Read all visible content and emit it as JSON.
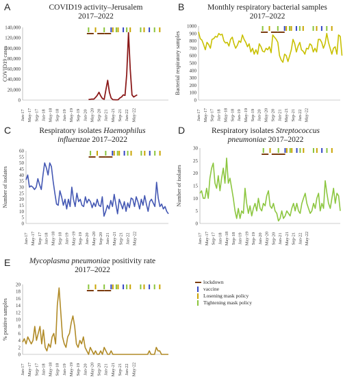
{
  "months": [
    "Jan-17",
    "May-17",
    "Sep-17",
    "Jan-18",
    "May-18",
    "Sep-18",
    "Jan-19",
    "May-19",
    "Sep-19",
    "Jan-20",
    "May-20",
    "Sep-20",
    "Jan-21",
    "May-21",
    "Sep-21",
    "Jan-22",
    "May-22"
  ],
  "colors": {
    "lockdown": "#7a3b0e",
    "vaccine": "#3346c4",
    "losening": "#c9a400",
    "tightening": "#8ac43a",
    "A": "#8b1a1a",
    "B": "#c8c000",
    "C": "#4357b3",
    "D": "#8cc63f",
    "E": "#b08a26"
  },
  "legend": {
    "lockdown": "lockdown",
    "vaccine": "vaccine",
    "losening": "Losening mask policy",
    "tightening": "Tightening mask policy"
  },
  "chart_data": [
    {
      "id": "A",
      "letter": "A",
      "type": "line",
      "title_line1": "COVID19 activity–Jerusalem",
      "title_line2": "2017–2022",
      "ylabel": "COVID19 cases",
      "ylim": [
        0,
        140000
      ],
      "yticks": [
        "0",
        "20,000",
        "40,000",
        "60,000",
        "80,000",
        "100,000",
        "120,000",
        "140,000"
      ],
      "start_index": 38,
      "values": [
        1200,
        1500,
        2000,
        1800,
        5000,
        9000,
        15000,
        8000,
        3000,
        1500,
        20000,
        38000,
        15000,
        4000,
        800,
        600,
        500,
        700,
        4000,
        6000,
        10000,
        9000,
        50000,
        130000,
        60000,
        10000,
        6000,
        8000,
        10000
      ]
    },
    {
      "id": "B",
      "letter": "B",
      "type": "line",
      "title_line1": "Monthly respiratory bacterial samples",
      "title_line2": "2017–2022",
      "ylabel": "Bacterial respiratory samples",
      "ylim": [
        0,
        1000
      ],
      "yticks": [
        "0",
        "100",
        "200",
        "300",
        "400",
        "500",
        "600",
        "700",
        "800",
        "900",
        "1000"
      ],
      "values": [
        920,
        830,
        810,
        750,
        680,
        780,
        750,
        700,
        820,
        830,
        860,
        850,
        900,
        880,
        890,
        800,
        770,
        780,
        730,
        820,
        850,
        760,
        700,
        740,
        800,
        780,
        880,
        820,
        780,
        720,
        760,
        650,
        700,
        620,
        680,
        620,
        760,
        720,
        660,
        650,
        700,
        680,
        720,
        640,
        880,
        850,
        820,
        780,
        600,
        540,
        510,
        620,
        600,
        520,
        600,
        680,
        820,
        760,
        650,
        730,
        780,
        680,
        660,
        620,
        700,
        690,
        760,
        740,
        650,
        700,
        650,
        820,
        820,
        780,
        700,
        760,
        900,
        780,
        700,
        620,
        700,
        720,
        620,
        880,
        860,
        600
      ]
    },
    {
      "id": "C",
      "letter": "C",
      "type": "line",
      "title_line1": "Respiratory isolates ",
      "title_italic1": "Haemophilus",
      "title_italic2": "influenzae",
      "title_line2_rest": " 2017–2022",
      "ylabel": "Number of isolates",
      "ylim": [
        0,
        60
      ],
      "yticks": [
        "0",
        "5",
        "10",
        "15",
        "20",
        "25",
        "30",
        "35",
        "40",
        "45",
        "50",
        "55",
        "60"
      ],
      "values": [
        36,
        40,
        30,
        31,
        30,
        28,
        30,
        37,
        32,
        28,
        40,
        50,
        46,
        40,
        50,
        47,
        35,
        25,
        16,
        15,
        27,
        22,
        15,
        20,
        12,
        20,
        14,
        30,
        20,
        14,
        25,
        18,
        20,
        15,
        14,
        22,
        17,
        20,
        18,
        13,
        17,
        14,
        20,
        15,
        14,
        22,
        6,
        10,
        15,
        12,
        19,
        14,
        24,
        16,
        8,
        20,
        16,
        12,
        18,
        10,
        17,
        13,
        21,
        20,
        14,
        22,
        18,
        12,
        20,
        15,
        23,
        16,
        10,
        18,
        20,
        17,
        14,
        34,
        21,
        14,
        16,
        12,
        14,
        10,
        8
      ]
    },
    {
      "id": "D",
      "letter": "D",
      "type": "line",
      "title_line1": "Respiratory isolates ",
      "title_italic1": "Streptococcus",
      "title_italic2": "pneumoniae",
      "title_line2_rest": " 2017–2022",
      "ylabel": "Number of isolates",
      "ylim": [
        0,
        30
      ],
      "yticks": [
        "0",
        "5",
        "10",
        "15",
        "20",
        "25",
        "30"
      ],
      "values": [
        12,
        13,
        10,
        10,
        14,
        10,
        18,
        22,
        24,
        16,
        14,
        19,
        13,
        18,
        22,
        16,
        26,
        16,
        18,
        14,
        10,
        5,
        2,
        6,
        2,
        5,
        4,
        14,
        8,
        4,
        7,
        3,
        6,
        8,
        5,
        10,
        6,
        5,
        8,
        7,
        11,
        13,
        7,
        6,
        8,
        5,
        4,
        1,
        2,
        5,
        2,
        3,
        5,
        4,
        3,
        6,
        8,
        5,
        8,
        5,
        4,
        8,
        10,
        12,
        8,
        6,
        4,
        5,
        8,
        6,
        10,
        12,
        5,
        8,
        6,
        17,
        12,
        8,
        6,
        10,
        14,
        8,
        12,
        11,
        5
      ]
    },
    {
      "id": "E",
      "letter": "E",
      "type": "line",
      "title_italic1": "Mycoplasma pneumoniae",
      "title_line1_rest": " positivity rate",
      "title_line2": "2017–2022",
      "ylabel": "% positive samples",
      "ylim": [
        0,
        20
      ],
      "yticks": [
        "0",
        "2",
        "4",
        "6",
        "8",
        "10",
        "12",
        "14",
        "16",
        "18",
        "20"
      ],
      "values": [
        3.5,
        4.5,
        3,
        5,
        4,
        3,
        4,
        8,
        4,
        6,
        8,
        3,
        7,
        2,
        1,
        3,
        2,
        5,
        6,
        3,
        14,
        19,
        12,
        5,
        3,
        2,
        5,
        6,
        9,
        11,
        8,
        3,
        2,
        4,
        3,
        5,
        2,
        1,
        0,
        2,
        1,
        0,
        1,
        0,
        0,
        1,
        0,
        2,
        1,
        0,
        0,
        1,
        0,
        0,
        0,
        0,
        0,
        0,
        0,
        0,
        0,
        0,
        0,
        0,
        0,
        0,
        0,
        0,
        0,
        0,
        0,
        0,
        0,
        1,
        0,
        0,
        0,
        2,
        1,
        1,
        0,
        0,
        0,
        0,
        0
      ]
    }
  ]
}
